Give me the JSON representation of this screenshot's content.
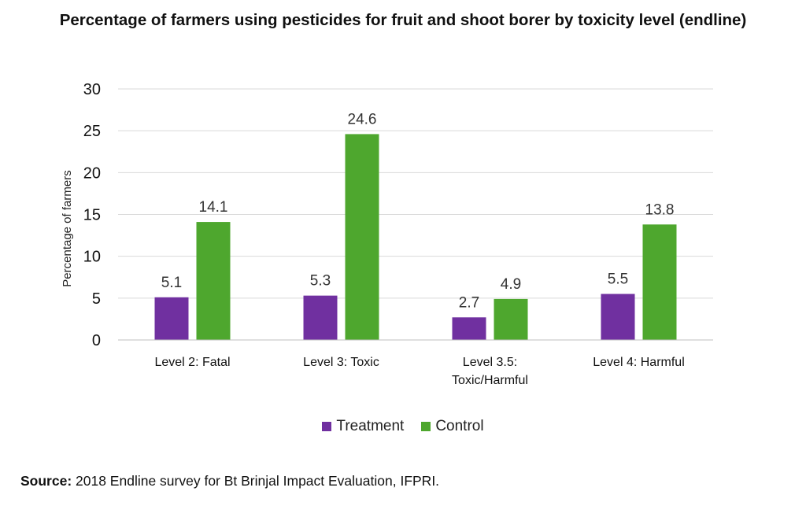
{
  "chart_data": {
    "type": "bar",
    "title": "Percentage of farmers using pesticides for fruit and shoot borer by toxicity level (endline)",
    "ylabel": "Percentage of farmers",
    "xlabel": "",
    "categories": [
      [
        "Level 2: Fatal"
      ],
      [
        "Level 3: Toxic"
      ],
      [
        "Level 3.5:",
        "Toxic/Harmful"
      ],
      [
        "Level 4: Harmful"
      ]
    ],
    "series": [
      {
        "name": "Treatment",
        "values": [
          5.1,
          5.3,
          2.7,
          5.5
        ],
        "labels": [
          "5.1",
          "5.3",
          "2.7",
          "5.5"
        ],
        "color": "#7030A0"
      },
      {
        "name": "Control",
        "values": [
          14.1,
          24.6,
          4.9,
          13.8
        ],
        "labels": [
          "14.1",
          "24.6",
          "4.9",
          "13.8"
        ],
        "color": "#4EA72E"
      }
    ],
    "ylim": [
      0,
      30
    ],
    "yticks": [
      "0",
      "5",
      "10",
      "15",
      "20",
      "25",
      "30"
    ],
    "grid": true,
    "legend_position": "bottom"
  },
  "source": {
    "label": "Source:",
    "text": " 2018 Endline survey for Bt Brinjal Impact Evaluation, IFPRI."
  }
}
